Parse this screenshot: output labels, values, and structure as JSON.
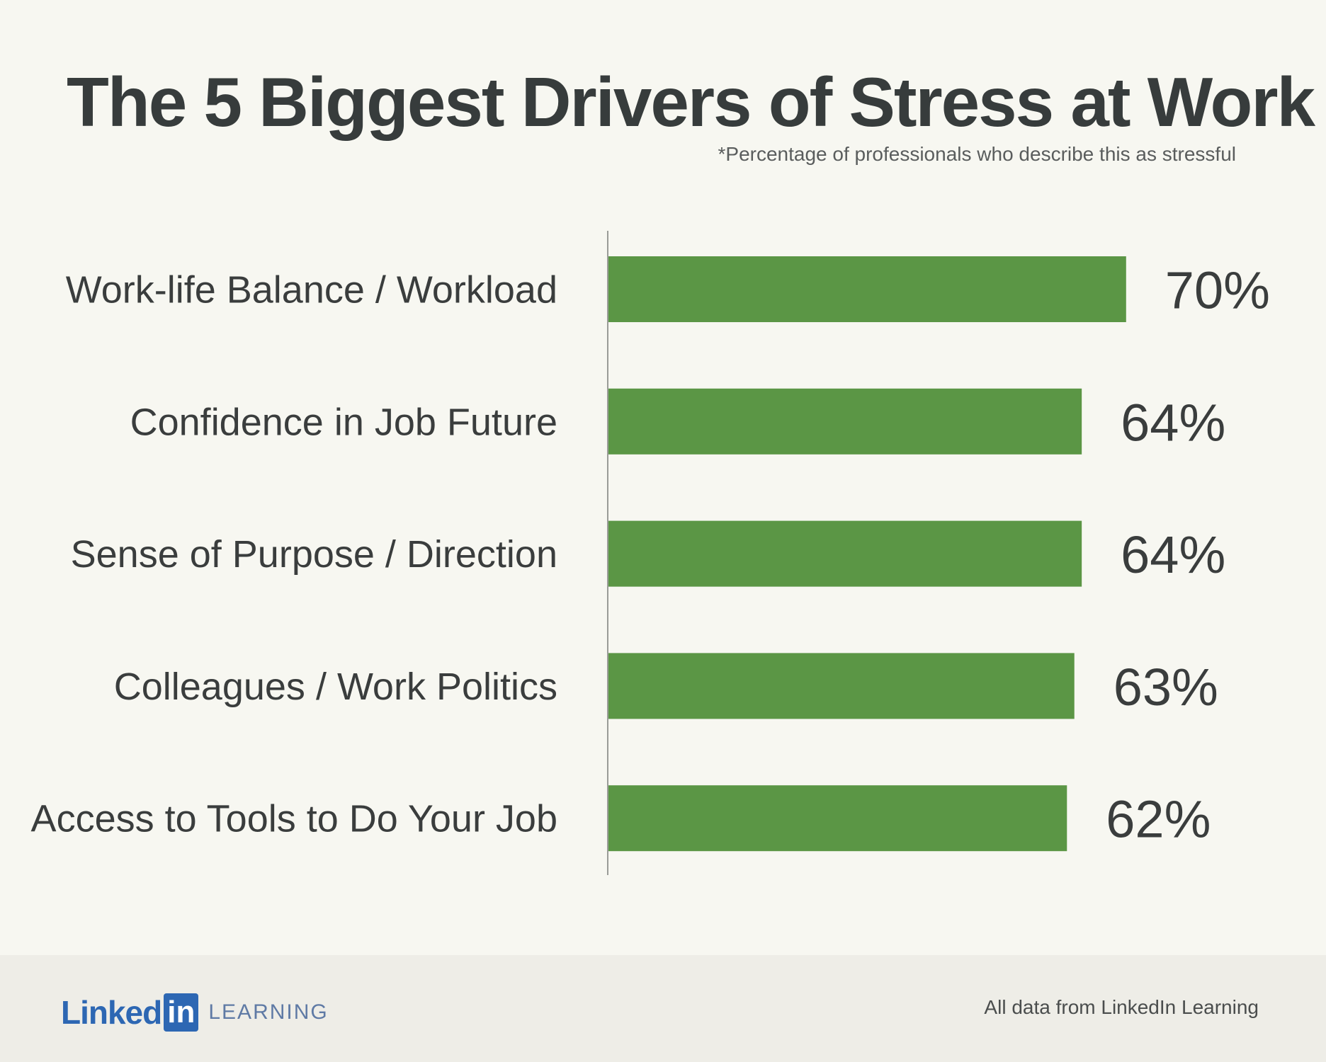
{
  "header": {
    "title": "The 5 Biggest Drivers of Stress at Work",
    "subtitle": "*Percentage of professionals who describe this as stressful"
  },
  "chart_data": {
    "type": "bar",
    "orientation": "horizontal",
    "title": "The 5 Biggest Drivers of Stress at Work",
    "subtitle": "*Percentage of professionals who describe this as stressful",
    "categories": [
      "Work-life Balance / Workload",
      "Confidence in Job Future",
      "Sense of Purpose / Direction",
      "Colleagues / Work Politics",
      "Access to Tools to Do Your Job"
    ],
    "values": [
      70,
      64,
      64,
      63,
      62
    ],
    "value_labels": [
      "70%",
      "64%",
      "64%",
      "63%",
      "62%"
    ],
    "xlim": [
      0,
      100
    ],
    "unit": "%",
    "grid": false,
    "bar_color": "#5b9645"
  },
  "footer": {
    "logo_linked": "Linked",
    "logo_in": "in",
    "logo_learning": "LEARNING",
    "source": "All data from LinkedIn Learning"
  }
}
